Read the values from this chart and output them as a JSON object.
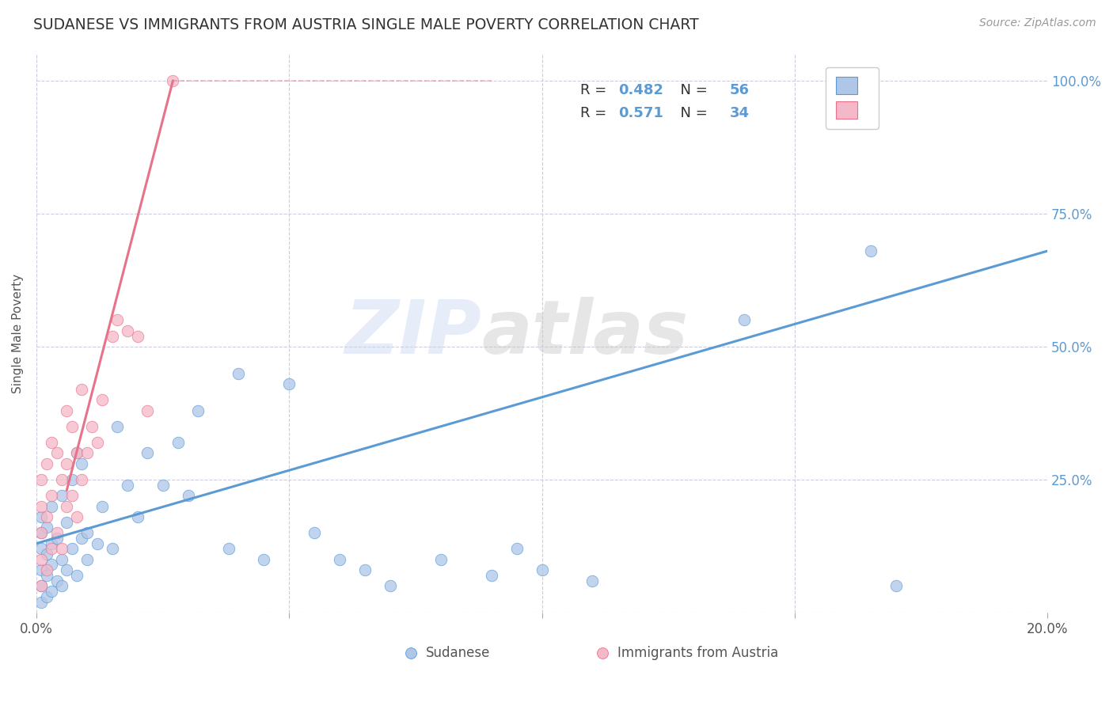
{
  "title": "SUDANESE VS IMMIGRANTS FROM AUSTRIA SINGLE MALE POVERTY CORRELATION CHART",
  "source": "Source: ZipAtlas.com",
  "ylabel": "Single Male Poverty",
  "xlim": [
    0.0,
    0.2
  ],
  "ylim": [
    0.0,
    1.05
  ],
  "yticks": [
    0.0,
    0.25,
    0.5,
    0.75,
    1.0
  ],
  "ytick_labels": [
    "",
    "25.0%",
    "50.0%",
    "75.0%",
    "100.0%"
  ],
  "xticks": [
    0.0,
    0.05,
    0.1,
    0.15,
    0.2
  ],
  "xtick_labels": [
    "0.0%",
    "",
    "",
    "",
    "20.0%"
  ],
  "watermark_zip": "ZIP",
  "watermark_atlas": "atlas",
  "blue_color": "#5b9bd5",
  "pink_color": "#e8728a",
  "scatter_blue": "#aec6e8",
  "scatter_pink": "#f4b8c8",
  "bg_color": "#ffffff",
  "grid_color": "#ccccdd",
  "title_color": "#333333",
  "axis_label_color": "#555555",
  "tick_color_y": "#5b9bd5",
  "tick_color_x": "#555555",
  "blue_line": [
    [
      0.0,
      0.13
    ],
    [
      0.2,
      0.68
    ]
  ],
  "pink_line_solid": [
    [
      0.006,
      0.23
    ],
    [
      0.027,
      1.0
    ]
  ],
  "pink_line_dashed": [
    [
      0.027,
      1.0
    ],
    [
      0.09,
      1.0
    ]
  ],
  "sudanese_x": [
    0.001,
    0.001,
    0.001,
    0.001,
    0.001,
    0.001,
    0.002,
    0.002,
    0.002,
    0.002,
    0.003,
    0.003,
    0.003,
    0.003,
    0.004,
    0.004,
    0.005,
    0.005,
    0.005,
    0.006,
    0.006,
    0.007,
    0.007,
    0.008,
    0.008,
    0.009,
    0.009,
    0.01,
    0.01,
    0.012,
    0.013,
    0.015,
    0.016,
    0.018,
    0.02,
    0.022,
    0.025,
    0.028,
    0.03,
    0.032,
    0.038,
    0.04,
    0.045,
    0.05,
    0.055,
    0.06,
    0.065,
    0.07,
    0.08,
    0.09,
    0.095,
    0.1,
    0.11,
    0.14,
    0.165,
    0.17
  ],
  "sudanese_y": [
    0.02,
    0.05,
    0.08,
    0.12,
    0.15,
    0.18,
    0.03,
    0.07,
    0.11,
    0.16,
    0.04,
    0.09,
    0.13,
    0.2,
    0.06,
    0.14,
    0.05,
    0.1,
    0.22,
    0.08,
    0.17,
    0.12,
    0.25,
    0.07,
    0.3,
    0.14,
    0.28,
    0.15,
    0.1,
    0.13,
    0.2,
    0.12,
    0.35,
    0.24,
    0.18,
    0.3,
    0.24,
    0.32,
    0.22,
    0.38,
    0.12,
    0.45,
    0.1,
    0.43,
    0.15,
    0.1,
    0.08,
    0.05,
    0.1,
    0.07,
    0.12,
    0.08,
    0.06,
    0.55,
    0.68,
    0.05
  ],
  "austria_x": [
    0.001,
    0.001,
    0.001,
    0.001,
    0.001,
    0.002,
    0.002,
    0.002,
    0.003,
    0.003,
    0.003,
    0.004,
    0.004,
    0.005,
    0.005,
    0.006,
    0.006,
    0.006,
    0.007,
    0.007,
    0.008,
    0.008,
    0.009,
    0.009,
    0.01,
    0.011,
    0.012,
    0.013,
    0.015,
    0.016,
    0.018,
    0.02,
    0.022,
    0.027
  ],
  "austria_y": [
    0.05,
    0.1,
    0.15,
    0.2,
    0.25,
    0.08,
    0.18,
    0.28,
    0.12,
    0.22,
    0.32,
    0.15,
    0.3,
    0.12,
    0.25,
    0.2,
    0.28,
    0.38,
    0.22,
    0.35,
    0.18,
    0.3,
    0.25,
    0.42,
    0.3,
    0.35,
    0.32,
    0.4,
    0.52,
    0.55,
    0.53,
    0.52,
    0.38,
    1.0
  ]
}
